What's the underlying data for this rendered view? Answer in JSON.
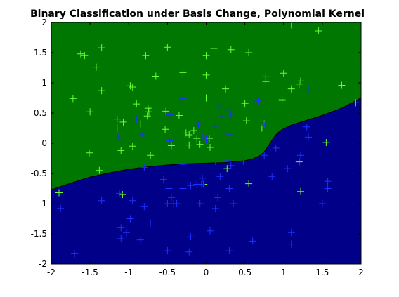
{
  "chart_data": {
    "type": "scatter",
    "title": "Binary Classification under Basis Change, Polynomial Kernel",
    "xlabel": "",
    "ylabel": "",
    "xlim": [
      -2,
      2
    ],
    "ylim": [
      -2,
      2
    ],
    "xticks": [
      "-2",
      "-1.5",
      "-1",
      "-0.5",
      "0",
      "0.5",
      "1",
      "1.5",
      "2"
    ],
    "yticks": [
      "-2",
      "-1.5",
      "-1",
      "-0.5",
      "0",
      "0.5",
      "1",
      "1.5",
      "2"
    ],
    "grid": false,
    "marker": "plus",
    "colors": {
      "region_upper": "#007700",
      "region_lower": "#000088",
      "class_green": "#66ff33",
      "class_blue": "#1f30ff",
      "boundary": "#000000"
    },
    "decision_boundary": {
      "x": [
        -2,
        -1.75,
        -1.5,
        -1.25,
        -1.0,
        -0.75,
        -0.5,
        -0.25,
        0.0,
        0.25,
        0.5,
        0.6,
        0.7,
        0.75,
        0.8,
        0.85,
        0.9,
        0.95,
        1.0,
        1.1,
        1.25,
        1.5,
        1.75,
        2.0
      ],
      "y": [
        -0.77,
        -0.66,
        -0.56,
        -0.49,
        -0.43,
        -0.39,
        -0.36,
        -0.34,
        -0.33,
        -0.32,
        -0.29,
        -0.26,
        -0.2,
        -0.14,
        -0.05,
        0.05,
        0.14,
        0.2,
        0.24,
        0.3,
        0.36,
        0.46,
        0.58,
        0.75
      ]
    },
    "series": [
      {
        "class": "green",
        "points": [
          [
            1.1,
            1.96
          ],
          [
            1.45,
            1.86
          ],
          [
            -1.62,
            1.48
          ],
          [
            -1.57,
            1.45
          ],
          [
            -1.35,
            1.58
          ],
          [
            -1.42,
            1.26
          ],
          [
            -0.78,
            1.45
          ],
          [
            -0.5,
            1.59
          ],
          [
            0.1,
            1.57
          ],
          [
            0.32,
            1.55
          ],
          [
            0.55,
            1.5
          ],
          [
            0.0,
            1.45
          ],
          [
            -0.65,
            1.11
          ],
          [
            -0.3,
            1.17
          ],
          [
            0.0,
            1.13
          ],
          [
            1.0,
            1.16
          ],
          [
            0.77,
            1.1
          ],
          [
            0.77,
            1.02
          ],
          [
            1.22,
            1.03
          ],
          [
            1.2,
            0.98
          ],
          [
            -1.72,
            0.74
          ],
          [
            -1.35,
            0.87
          ],
          [
            -0.95,
            0.93
          ],
          [
            -0.98,
            0.95
          ],
          [
            0.25,
            0.9
          ],
          [
            1.1,
            0.9
          ],
          [
            1.75,
            0.96
          ],
          [
            -1.5,
            0.52
          ],
          [
            -0.9,
            0.65
          ],
          [
            -0.75,
            0.58
          ],
          [
            -0.74,
            0.52
          ],
          [
            -0.76,
            0.45
          ],
          [
            -0.52,
            0.53
          ],
          [
            -0.35,
            0.46
          ],
          [
            0.0,
            0.75
          ],
          [
            0.5,
            0.66
          ],
          [
            0.98,
            0.71
          ],
          [
            -1.15,
            0.4
          ],
          [
            -1.07,
            0.35
          ],
          [
            -0.85,
            0.32
          ],
          [
            -0.53,
            0.23
          ],
          [
            -0.26,
            0.17
          ],
          [
            -0.16,
            0.21
          ],
          [
            -0.12,
            0.08
          ],
          [
            0.04,
            0.08
          ],
          [
            -0.22,
            0.14
          ],
          [
            -0.08,
            -0.02
          ],
          [
            -1.15,
            0.25
          ],
          [
            -1.1,
            -0.12
          ],
          [
            -0.95,
            -0.05
          ],
          [
            -0.72,
            -0.2
          ],
          [
            -0.45,
            -0.04
          ],
          [
            -0.22,
            -0.03
          ],
          [
            0.05,
            -0.07
          ],
          [
            0.72,
            0.25
          ],
          [
            0.75,
            0.32
          ],
          [
            0.98,
            0.72
          ],
          [
            1.93,
            0.67
          ],
          [
            1.55,
            0.01
          ],
          [
            1.2,
            -0.31
          ],
          [
            -1.51,
            -0.16
          ],
          [
            -1.38,
            -0.45
          ],
          [
            -1.9,
            -0.82
          ],
          [
            -1.08,
            -0.85
          ],
          [
            0.27,
            -0.42
          ],
          [
            -0.03,
            -0.68
          ],
          [
            0.55,
            -0.67
          ],
          [
            1.22,
            -0.8
          ],
          [
            0.52,
            0.37
          ]
        ]
      },
      {
        "class": "blue",
        "points": [
          [
            1.33,
            0.89
          ],
          [
            -0.3,
            0.74
          ],
          [
            -0.47,
            0.47
          ],
          [
            -0.9,
            0.4
          ],
          [
            0.22,
            0.66
          ],
          [
            0.17,
            0.62
          ],
          [
            0.28,
            0.55
          ],
          [
            0.32,
            0.48
          ],
          [
            0.2,
            0.44
          ],
          [
            0.67,
            0.7
          ],
          [
            -0.82,
            0.15
          ],
          [
            -1.13,
            0.1
          ],
          [
            -0.97,
            -0.07
          ],
          [
            -0.47,
            0.04
          ],
          [
            -0.1,
            0.3
          ],
          [
            0.12,
            0.28
          ],
          [
            0.22,
            0.17
          ],
          [
            0.3,
            0.15
          ],
          [
            -0.05,
            0.12
          ],
          [
            0.0,
            0.07
          ],
          [
            0.75,
            0.3
          ],
          [
            1.3,
            0.27
          ],
          [
            0.9,
            -0.08
          ],
          [
            0.68,
            -0.1
          ],
          [
            0.75,
            -0.2
          ],
          [
            1.22,
            -0.2
          ],
          [
            1.05,
            -0.42
          ],
          [
            0.48,
            -0.3
          ],
          [
            0.28,
            -0.28
          ],
          [
            0.32,
            -0.37
          ],
          [
            0.12,
            -0.3
          ],
          [
            -0.8,
            -0.4
          ],
          [
            -0.3,
            -0.35
          ],
          [
            -1.88,
            -1.08
          ],
          [
            -1.35,
            -0.95
          ],
          [
            -1.12,
            -0.83
          ],
          [
            -0.95,
            -0.95
          ],
          [
            -0.98,
            -1.25
          ],
          [
            -0.8,
            -1.05
          ],
          [
            -0.55,
            -0.6
          ],
          [
            -0.48,
            -0.75
          ],
          [
            -0.45,
            -0.9
          ],
          [
            -0.5,
            -1.0
          ],
          [
            -0.42,
            -1.0
          ],
          [
            -0.38,
            -1.0
          ],
          [
            -0.3,
            -0.75
          ],
          [
            -0.12,
            -0.68
          ],
          [
            -0.06,
            -0.68
          ],
          [
            -0.05,
            -0.58
          ],
          [
            0.18,
            -0.55
          ],
          [
            -0.2,
            -0.7
          ],
          [
            -0.08,
            -1.0
          ],
          [
            0.15,
            -0.9
          ],
          [
            0.3,
            -0.75
          ],
          [
            0.12,
            -1.08
          ],
          [
            0.35,
            -1.0
          ],
          [
            0.05,
            -1.45
          ],
          [
            -0.2,
            -1.55
          ],
          [
            -0.22,
            -1.8
          ],
          [
            -0.5,
            -1.78
          ],
          [
            -0.72,
            -1.32
          ],
          [
            -0.85,
            -1.6
          ],
          [
            -1.1,
            -1.4
          ],
          [
            -1.1,
            -1.58
          ],
          [
            -1.03,
            -1.48
          ],
          [
            -1.7,
            -1.83
          ],
          [
            0.3,
            -1.78
          ],
          [
            0.6,
            -1.62
          ],
          [
            0.85,
            -0.55
          ],
          [
            1.1,
            -1.48
          ],
          [
            1.1,
            -1.67
          ],
          [
            1.5,
            -1.0
          ],
          [
            1.57,
            -0.63
          ],
          [
            1.57,
            -0.75
          ],
          [
            1.32,
            0.1
          ]
        ]
      }
    ]
  }
}
